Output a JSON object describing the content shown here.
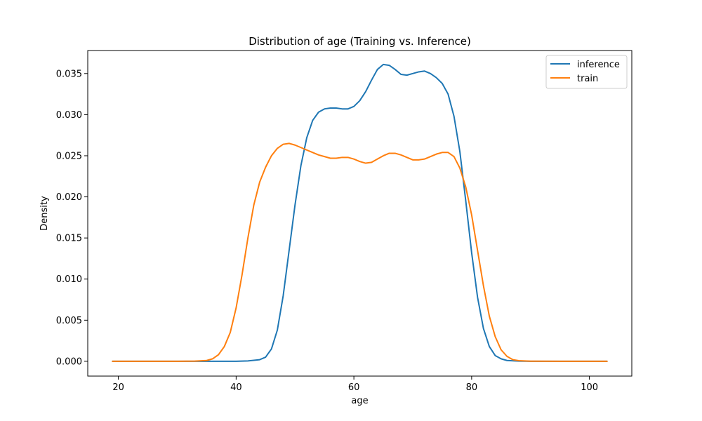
{
  "chart_data": {
    "type": "line",
    "title": "Distribution of age (Training vs. Inference)",
    "xlabel": "age",
    "ylabel": "Density",
    "xlim": [
      14.8,
      107.2
    ],
    "ylim": [
      -0.0018,
      0.0378
    ],
    "x_ticks": [
      20,
      40,
      60,
      80,
      100
    ],
    "x_tick_labels": [
      "20",
      "40",
      "60",
      "80",
      "100"
    ],
    "y_ticks": [
      0.0,
      0.005,
      0.01,
      0.015,
      0.02,
      0.025,
      0.03,
      0.035
    ],
    "y_tick_labels": [
      "0.000",
      "0.005",
      "0.010",
      "0.015",
      "0.020",
      "0.025",
      "0.030",
      "0.035"
    ],
    "grid": false,
    "legend_position": "upper right",
    "series": [
      {
        "name": "inference",
        "color": "#1f77b4",
        "x": [
          19,
          30,
          35,
          40,
          42,
          44,
          45,
          46,
          47,
          48,
          49,
          50,
          51,
          52,
          53,
          54,
          55,
          56,
          57,
          58,
          59,
          60,
          61,
          62,
          63,
          64,
          65,
          66,
          67,
          68,
          69,
          70,
          71,
          72,
          73,
          74,
          75,
          76,
          77,
          78,
          79,
          80,
          81,
          82,
          83,
          84,
          85,
          86,
          88,
          90,
          95,
          103
        ],
        "y": [
          0,
          0,
          0,
          0,
          5e-05,
          0.0002,
          0.0005,
          0.0015,
          0.0038,
          0.008,
          0.0135,
          0.019,
          0.0238,
          0.0272,
          0.0293,
          0.0303,
          0.0307,
          0.0308,
          0.0308,
          0.0307,
          0.0307,
          0.031,
          0.0317,
          0.0328,
          0.0342,
          0.0355,
          0.0361,
          0.036,
          0.0355,
          0.0349,
          0.0348,
          0.035,
          0.0352,
          0.0353,
          0.035,
          0.0345,
          0.0338,
          0.0325,
          0.0298,
          0.0255,
          0.0195,
          0.0132,
          0.0078,
          0.004,
          0.0018,
          0.0007,
          0.0003,
          0.0001,
          2e-05,
          0,
          0,
          0
        ]
      },
      {
        "name": "train",
        "color": "#ff7f0e",
        "x": [
          19,
          30,
          33,
          35,
          36,
          37,
          38,
          39,
          40,
          41,
          42,
          43,
          44,
          45,
          46,
          47,
          48,
          49,
          50,
          51,
          52,
          53,
          54,
          55,
          56,
          57,
          58,
          59,
          60,
          61,
          62,
          63,
          64,
          65,
          66,
          67,
          68,
          69,
          70,
          71,
          72,
          73,
          74,
          75,
          76,
          77,
          78,
          79,
          80,
          81,
          82,
          83,
          84,
          85,
          86,
          87,
          88,
          90,
          95,
          103
        ],
        "y": [
          0,
          0,
          2e-05,
          0.0001,
          0.0003,
          0.0008,
          0.0018,
          0.0035,
          0.0065,
          0.0105,
          0.015,
          0.019,
          0.0218,
          0.0236,
          0.025,
          0.0259,
          0.0264,
          0.0265,
          0.0263,
          0.026,
          0.0257,
          0.0254,
          0.0251,
          0.0249,
          0.0247,
          0.0247,
          0.0248,
          0.0248,
          0.0246,
          0.0243,
          0.0241,
          0.0242,
          0.0246,
          0.025,
          0.0253,
          0.0253,
          0.0251,
          0.0248,
          0.0245,
          0.0245,
          0.0246,
          0.0249,
          0.0252,
          0.0254,
          0.0254,
          0.0249,
          0.0235,
          0.0212,
          0.0178,
          0.0135,
          0.0092,
          0.0055,
          0.003,
          0.0014,
          0.0006,
          0.0002,
          8e-05,
          1e-05,
          0,
          0
        ]
      }
    ]
  }
}
